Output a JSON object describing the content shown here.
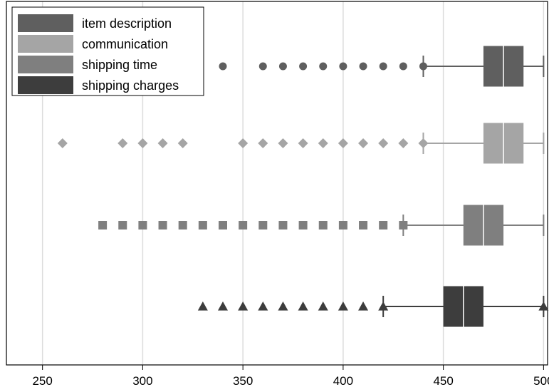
{
  "chart_data": {
    "type": "box",
    "orientation": "horizontal",
    "xlim": [
      232,
      502
    ],
    "xticks": [
      250,
      300,
      350,
      400,
      450,
      500
    ],
    "xtick_labels": [
      "250",
      "300",
      "350",
      "400",
      "450",
      "500"
    ],
    "grid": true,
    "legend_position": "top-left",
    "series": [
      {
        "name": "item description",
        "color": "#5f5f5f",
        "marker": "circle",
        "whisker_low": 440,
        "q1": 470,
        "median": 480,
        "q3": 490,
        "whisker_high": 500,
        "outliers": [
          340,
          360,
          370,
          380,
          390,
          400,
          410,
          420,
          430,
          440
        ]
      },
      {
        "name": "communication",
        "color": "#a5a5a5",
        "marker": "diamond",
        "whisker_low": 440,
        "q1": 470,
        "median": 480,
        "q3": 490,
        "whisker_high": 500,
        "outliers": [
          260,
          290,
          300,
          310,
          320,
          350,
          360,
          370,
          380,
          390,
          400,
          410,
          420,
          430,
          440
        ]
      },
      {
        "name": "shipping time",
        "color": "#7f7f7f",
        "marker": "square",
        "whisker_low": 430,
        "q1": 460,
        "median": 470,
        "q3": 480,
        "whisker_high": 500,
        "outliers": [
          280,
          290,
          300,
          310,
          320,
          330,
          340,
          350,
          360,
          370,
          380,
          390,
          400,
          410,
          420,
          430
        ]
      },
      {
        "name": "shipping charges",
        "color": "#3d3d3d",
        "marker": "triangle",
        "whisker_low": 420,
        "q1": 450,
        "median": 460,
        "q3": 470,
        "whisker_high": 500,
        "outliers": [
          330,
          340,
          350,
          360,
          370,
          380,
          390,
          400,
          410,
          420,
          500
        ]
      }
    ]
  }
}
